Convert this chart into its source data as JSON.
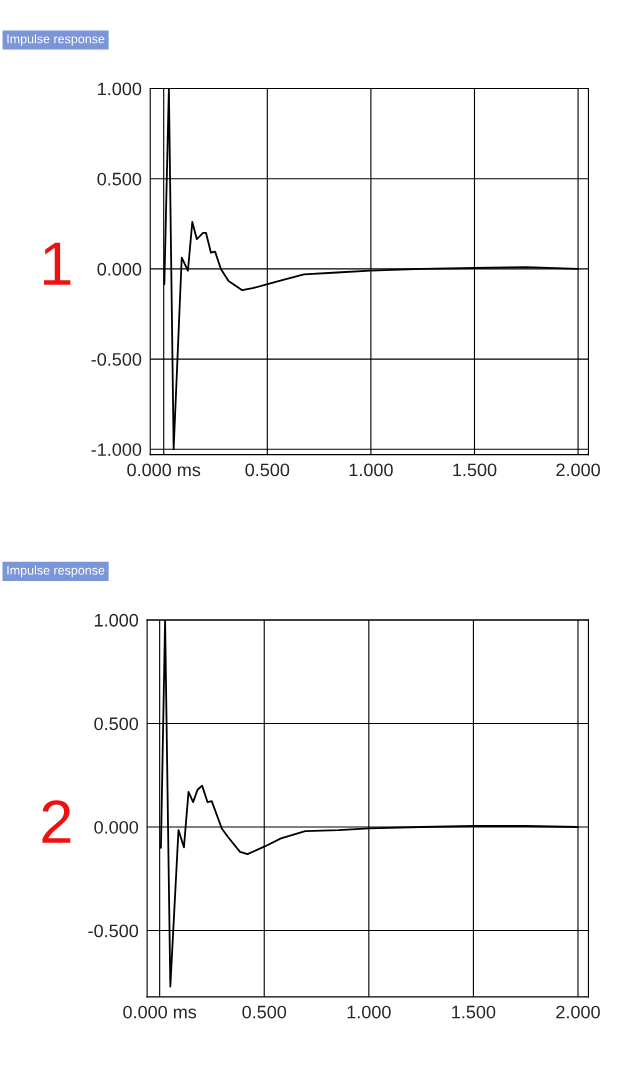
{
  "chart_data": [
    {
      "type": "line",
      "title": "Impulse response",
      "annotations": [
        "1"
      ],
      "x": [
        0.003,
        0.025,
        0.048,
        0.087,
        0.117,
        0.138,
        0.16,
        0.19,
        0.204,
        0.228,
        0.248,
        0.276,
        0.313,
        0.379,
        0.429,
        0.488,
        0.59,
        0.677,
        0.837,
        0.997,
        1.25,
        1.5,
        1.75,
        2.0
      ],
      "series": [
        {
          "color": "#000000",
          "values": [
            -0.085,
            1.0,
            -1.0,
            0.063,
            -0.01,
            0.26,
            0.165,
            0.2,
            0.2,
            0.09,
            0.096,
            0.0,
            -0.067,
            -0.118,
            -0.107,
            -0.089,
            -0.057,
            -0.03,
            -0.02,
            -0.01,
            0.0,
            0.005,
            0.01,
            0.0
          ]
        }
      ],
      "xlim": [
        -0.065,
        2.05
      ],
      "ylim": [
        -1.03,
        1.0
      ],
      "xticks": [
        {
          "value": 0,
          "label": "0.000 ms"
        },
        {
          "value": 0.5,
          "label": "0.500"
        },
        {
          "value": 1.0,
          "label": "1.000"
        },
        {
          "value": 1.5,
          "label": "1.500"
        },
        {
          "value": 2.0,
          "label": "2.000"
        }
      ],
      "yticks": [
        {
          "value": 1.0,
          "label": "1.000"
        },
        {
          "value": 0.5,
          "label": "0.500"
        },
        {
          "value": 0.0,
          "label": "0.000"
        },
        {
          "value": -0.5,
          "label": "-0.500"
        },
        {
          "value": -1.0,
          "label": "-1.000"
        }
      ],
      "grid": true,
      "legend": false,
      "marker": "none",
      "line_style": "solid"
    },
    {
      "type": "line",
      "title": "Impulse response",
      "annotations": [
        "2"
      ],
      "x": [
        0.006,
        0.026,
        0.051,
        0.09,
        0.116,
        0.138,
        0.16,
        0.181,
        0.203,
        0.229,
        0.249,
        0.297,
        0.326,
        0.384,
        0.42,
        0.5,
        0.58,
        0.696,
        0.855,
        1.0,
        1.25,
        1.5,
        1.75,
        2.0
      ],
      "series": [
        {
          "color": "#000000",
          "values": [
            -0.1,
            1.0,
            -0.77,
            -0.015,
            -0.098,
            0.17,
            0.12,
            0.18,
            0.2,
            0.12,
            0.125,
            -0.007,
            -0.047,
            -0.12,
            -0.131,
            -0.095,
            -0.055,
            -0.02,
            -0.015,
            -0.007,
            0.0,
            0.005,
            0.005,
            0.0
          ]
        }
      ],
      "xlim": [
        -0.06,
        2.05
      ],
      "ylim": [
        -0.82,
        1.0
      ],
      "xticks": [
        {
          "value": 0,
          "label": "0.000 ms"
        },
        {
          "value": 0.5,
          "label": "0.500"
        },
        {
          "value": 1.0,
          "label": "1.000"
        },
        {
          "value": 1.5,
          "label": "1.500"
        },
        {
          "value": 2.0,
          "label": "2.000"
        }
      ],
      "yticks": [
        {
          "value": 1.0,
          "label": "1.000"
        },
        {
          "value": 0.5,
          "label": "0.500"
        },
        {
          "value": 0.0,
          "label": "0.000"
        },
        {
          "value": -0.5,
          "label": "-0.500"
        }
      ],
      "grid": true,
      "legend": false,
      "marker": "none",
      "line_style": "solid"
    }
  ]
}
